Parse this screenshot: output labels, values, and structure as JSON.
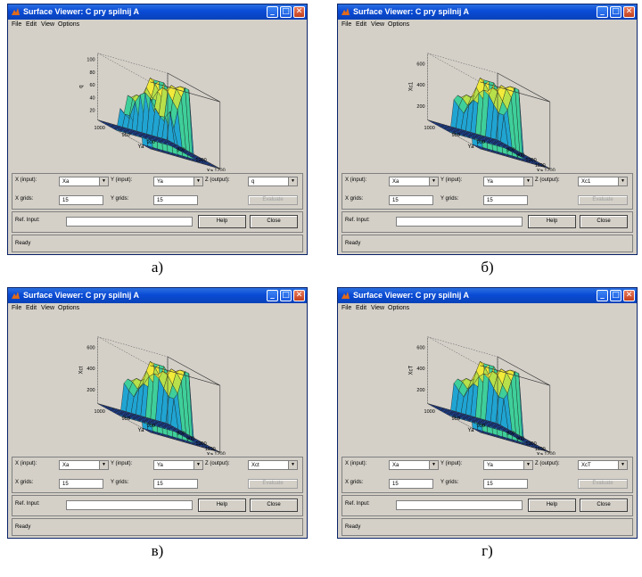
{
  "window": {
    "title": "Surface Viewer: C pry spilnij A",
    "menu": [
      "File",
      "Edit",
      "View",
      "Options"
    ]
  },
  "controls": {
    "x_input_label": "X (input):",
    "y_input_label": "Y (input):",
    "z_output_label": "Z (output):",
    "x_grids_label": "X grids:",
    "y_grids_label": "Y grids:",
    "x_grids_value": "15",
    "y_grids_value": "15",
    "ref_input_label": "Ref. Input:",
    "evaluate_label": "Evaluate",
    "help_label": "Help",
    "close_label": "Close",
    "status": "Ready"
  },
  "panels": [
    {
      "caption": "а)",
      "x_input": "Xa",
      "y_input": "Ya",
      "z_output": "q",
      "z_label": "q",
      "z_ticks": [
        "100",
        "80",
        "60",
        "40",
        "20"
      ],
      "x_ticks": [
        "800",
        "1000",
        "1200"
      ],
      "y_ticks": [
        "1000",
        "950",
        "900"
      ],
      "x_axis_label": "Xa",
      "y_axis_label": "Ya"
    },
    {
      "caption": "б)",
      "x_input": "Xa",
      "y_input": "Ya",
      "z_output": "Xc1",
      "z_label": "Xc1",
      "z_ticks": [
        "600",
        "400",
        "200"
      ],
      "x_ticks": [
        "800",
        "900",
        "1000",
        "1100",
        "1200"
      ],
      "y_ticks": [
        "1000",
        "950",
        "900"
      ],
      "x_axis_label": "Xa",
      "y_axis_label": "Ya"
    },
    {
      "caption": "в)",
      "x_input": "Xa",
      "y_input": "Ya",
      "z_output": "Xct",
      "z_label": "Xct",
      "z_ticks": [
        "600",
        "400",
        "200"
      ],
      "x_ticks": [
        "800",
        "900",
        "1000",
        "1100",
        "1200"
      ],
      "y_ticks": [
        "1000",
        "950",
        "900"
      ],
      "x_axis_label": "Xa",
      "y_axis_label": "Ya"
    },
    {
      "caption": "г)",
      "x_input": "Xa",
      "y_input": "Ya",
      "z_output": "XcT",
      "z_label": "XcT",
      "z_ticks": [
        "600",
        "400",
        "200"
      ],
      "x_ticks": [
        "800",
        "900",
        "1000",
        "1100",
        "1200"
      ],
      "y_ticks": [
        "1000",
        "950",
        "900"
      ],
      "x_axis_label": "Xa",
      "y_axis_label": "Ya"
    }
  ],
  "colors": {
    "titlebar": "#0a4bd6",
    "face": "#d4d0c8",
    "surface_low": "#1f55d8",
    "surface_mid": "#22b8c8",
    "surface_high": "#f2ea3a"
  }
}
